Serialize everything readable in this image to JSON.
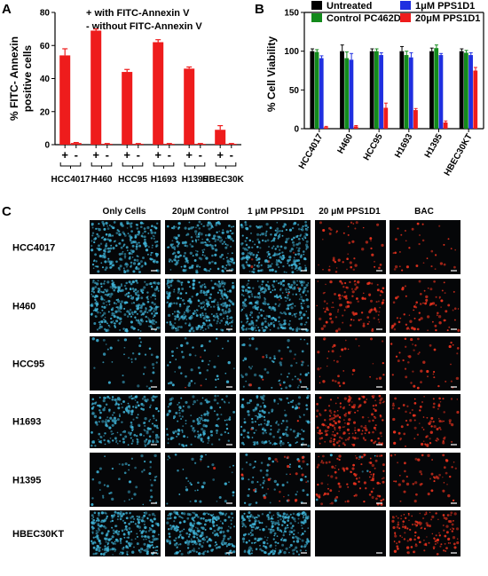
{
  "panels": {
    "a_letter": "A",
    "b_letter": "B",
    "c_letter": "C"
  },
  "chart_data": [
    {
      "type": "bar",
      "panel": "A",
      "ylabel_line1": "% FITC- Annexin",
      "ylabel_line2": "positive cells",
      "ylim": [
        0,
        80
      ],
      "yticks": [
        0,
        20,
        40,
        60,
        80
      ],
      "legend_plus": "+ with FITC-Annexin V",
      "legend_minus": "- without FITC-Annexin V",
      "categories": [
        "HCC4017",
        "H460",
        "HCC95",
        "H1693",
        "H1395",
        "HBEC30KT"
      ],
      "bar_signs": [
        "+",
        "-"
      ],
      "series": [
        {
          "values": [
            54,
            69,
            44,
            62,
            46,
            9
          ],
          "errors": [
            4,
            1,
            1.5,
            1.5,
            1,
            2.5
          ],
          "color": "#ee1c1c"
        },
        {
          "values": [
            1,
            0.5,
            0.5,
            0.5,
            0.5,
            0.5
          ],
          "errors": [
            0.3,
            0.2,
            0.2,
            0.2,
            0.2,
            0.2
          ],
          "color": "#ee1c1c"
        }
      ]
    },
    {
      "type": "bar",
      "panel": "B",
      "ylabel": "% Cell Viability",
      "ylim": [
        0,
        150
      ],
      "yticks": [
        0,
        50,
        100,
        150
      ],
      "categories": [
        "HCC4017",
        "H460",
        "HCC95",
        "H1693",
        "H1395",
        "HBEC30KT"
      ],
      "series": [
        {
          "name": "Untreated",
          "color": "#000000",
          "values": [
            100,
            100,
            100,
            100,
            100,
            100
          ],
          "errors": [
            3,
            8,
            3,
            6,
            4,
            3
          ]
        },
        {
          "name": "Control PC462D1",
          "color": "#138a1c",
          "values": [
            99,
            91,
            100,
            95,
            104,
            98
          ],
          "errors": [
            3,
            8,
            3,
            5,
            4,
            3
          ]
        },
        {
          "name": "1μM PPS1D1",
          "color": "#1f2fe0",
          "values": [
            91,
            89,
            95,
            92,
            95,
            95
          ],
          "errors": [
            3,
            8,
            3,
            6,
            2,
            3
          ]
        },
        {
          "name": "20μM PPS1D1",
          "color": "#ee1c1c",
          "values": [
            2,
            3,
            27,
            24,
            8,
            75
          ],
          "errors": [
            1,
            1,
            6,
            2,
            2,
            4
          ]
        }
      ]
    }
  ],
  "micrograph_grid": {
    "columns": [
      "Only Cells",
      "20μM Control",
      "1 μM PPS1D1",
      "20 μM PPS1D1",
      "BAC"
    ],
    "rows": [
      "HCC4017",
      "H460",
      "HCC95",
      "H1693",
      "H1395",
      "HBEC30KT"
    ],
    "cell_colors": {
      "blue": "#3fb4d8",
      "red": "#e8321e",
      "background": "#050608"
    }
  }
}
